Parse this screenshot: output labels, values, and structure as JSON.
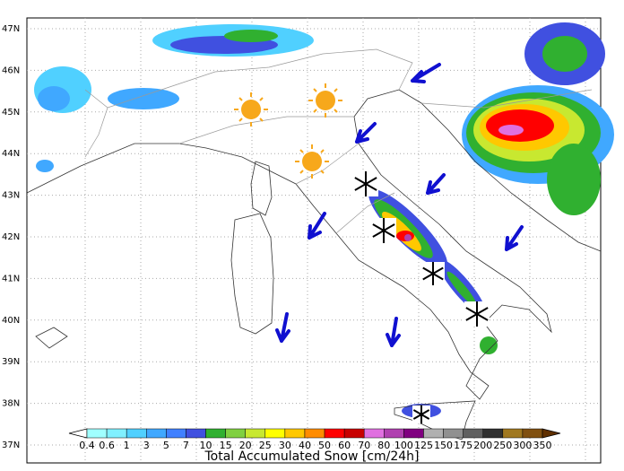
{
  "map": {
    "lat_labels": [
      "47N",
      "46N",
      "45N",
      "44N",
      "43N",
      "42N",
      "41N",
      "40N",
      "39N",
      "38N",
      "37N"
    ],
    "colorbar": {
      "title": "Total Accumulated Snow [cm/24h]",
      "labels": [
        "0.4",
        "0.6",
        "1",
        "3",
        "5",
        "7",
        "10",
        "15",
        "20",
        "25",
        "30",
        "40",
        "50",
        "60",
        "70",
        "80",
        "100",
        "125",
        "150",
        "175",
        "200",
        "250",
        "300",
        "350"
      ],
      "colors": [
        "#ffffff",
        "#a0ffff",
        "#80f0ff",
        "#50d0ff",
        "#40a8ff",
        "#4080ff",
        "#4050e0",
        "#30b030",
        "#80d040",
        "#c8e830",
        "#ffff00",
        "#ffc800",
        "#ff8c00",
        "#ff0000",
        "#c80000",
        "#e070e0",
        "#b040b0",
        "#800080",
        "#b0b0b0",
        "#909090",
        "#606060",
        "#303030",
        "#a07820",
        "#805010",
        "#603000"
      ]
    }
  }
}
